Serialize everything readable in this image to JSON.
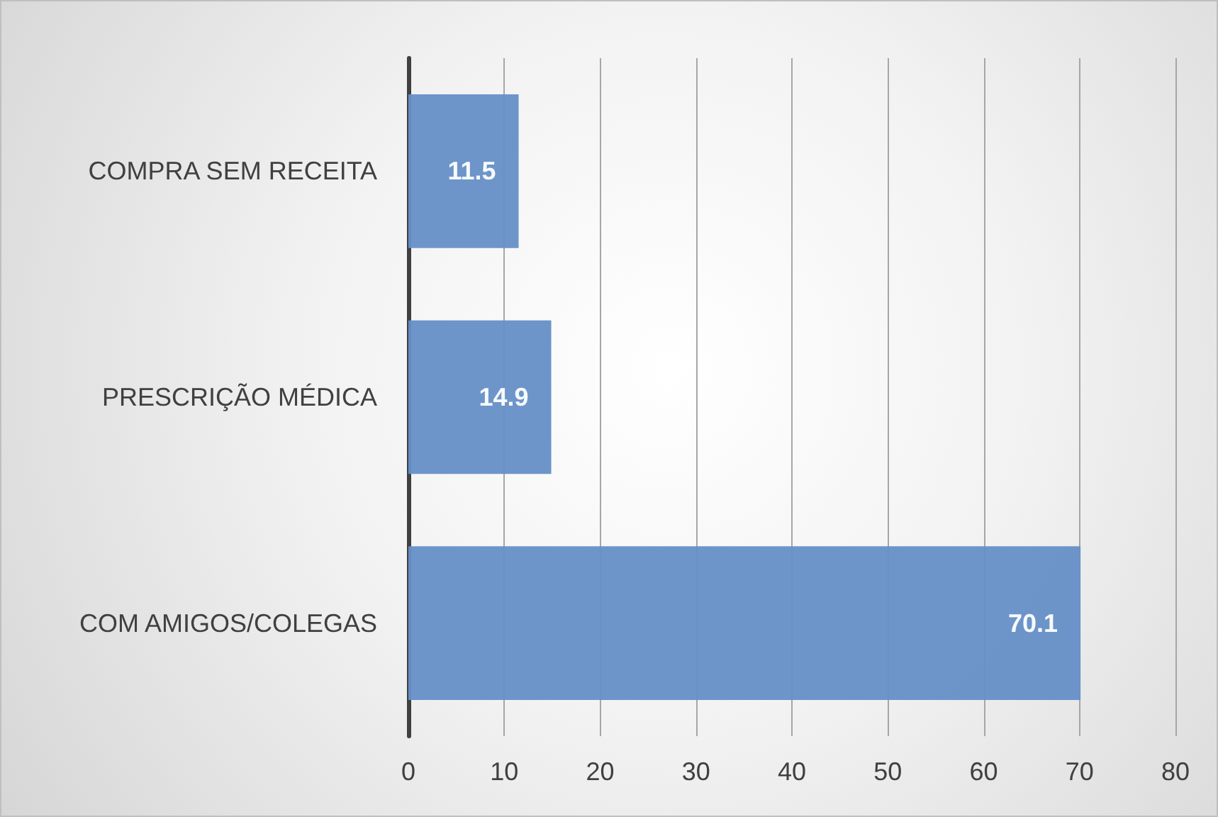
{
  "chart_data": {
    "type": "bar",
    "orientation": "horizontal",
    "categories": [
      "COMPRA SEM RECEITA",
      "PRESCRIÇÃO MÉDICA",
      "COM AMIGOS/COLEGAS"
    ],
    "values": [
      11.5,
      14.9,
      70.1
    ],
    "color": "#658fc7",
    "xlim": [
      0,
      80
    ],
    "xticks": [
      0,
      10,
      20,
      30,
      40,
      50,
      60,
      70,
      80
    ],
    "grid": "x",
    "data_labels": true
  }
}
